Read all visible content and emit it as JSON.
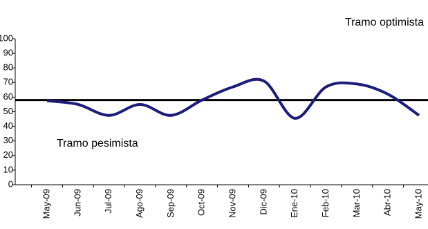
{
  "chart_data": {
    "type": "line",
    "categories": [
      "May-09",
      "Jun-09",
      "Jul-09",
      "Ago-09",
      "Sep-09",
      "Oct-09",
      "Nov-09",
      "Dic-09",
      "Ene-10",
      "Feb-10",
      "Mar-10",
      "Abr-10",
      "May-10"
    ],
    "series": [
      {
        "color": "#1c1c7a",
        "values": [
          57.5,
          55,
          47.5,
          55,
          47.5,
          58,
          67,
          71,
          45.5,
          67,
          69,
          62,
          47.5
        ]
      }
    ],
    "reference_line": {
      "value": 58,
      "color": "#000000"
    },
    "annotations": [
      "Tramo optimista",
      "Tramo pesimista"
    ],
    "ylim": [
      0,
      100
    ],
    "yticks": [
      0,
      10,
      20,
      30,
      40,
      50,
      60,
      70,
      80,
      90,
      100
    ]
  }
}
